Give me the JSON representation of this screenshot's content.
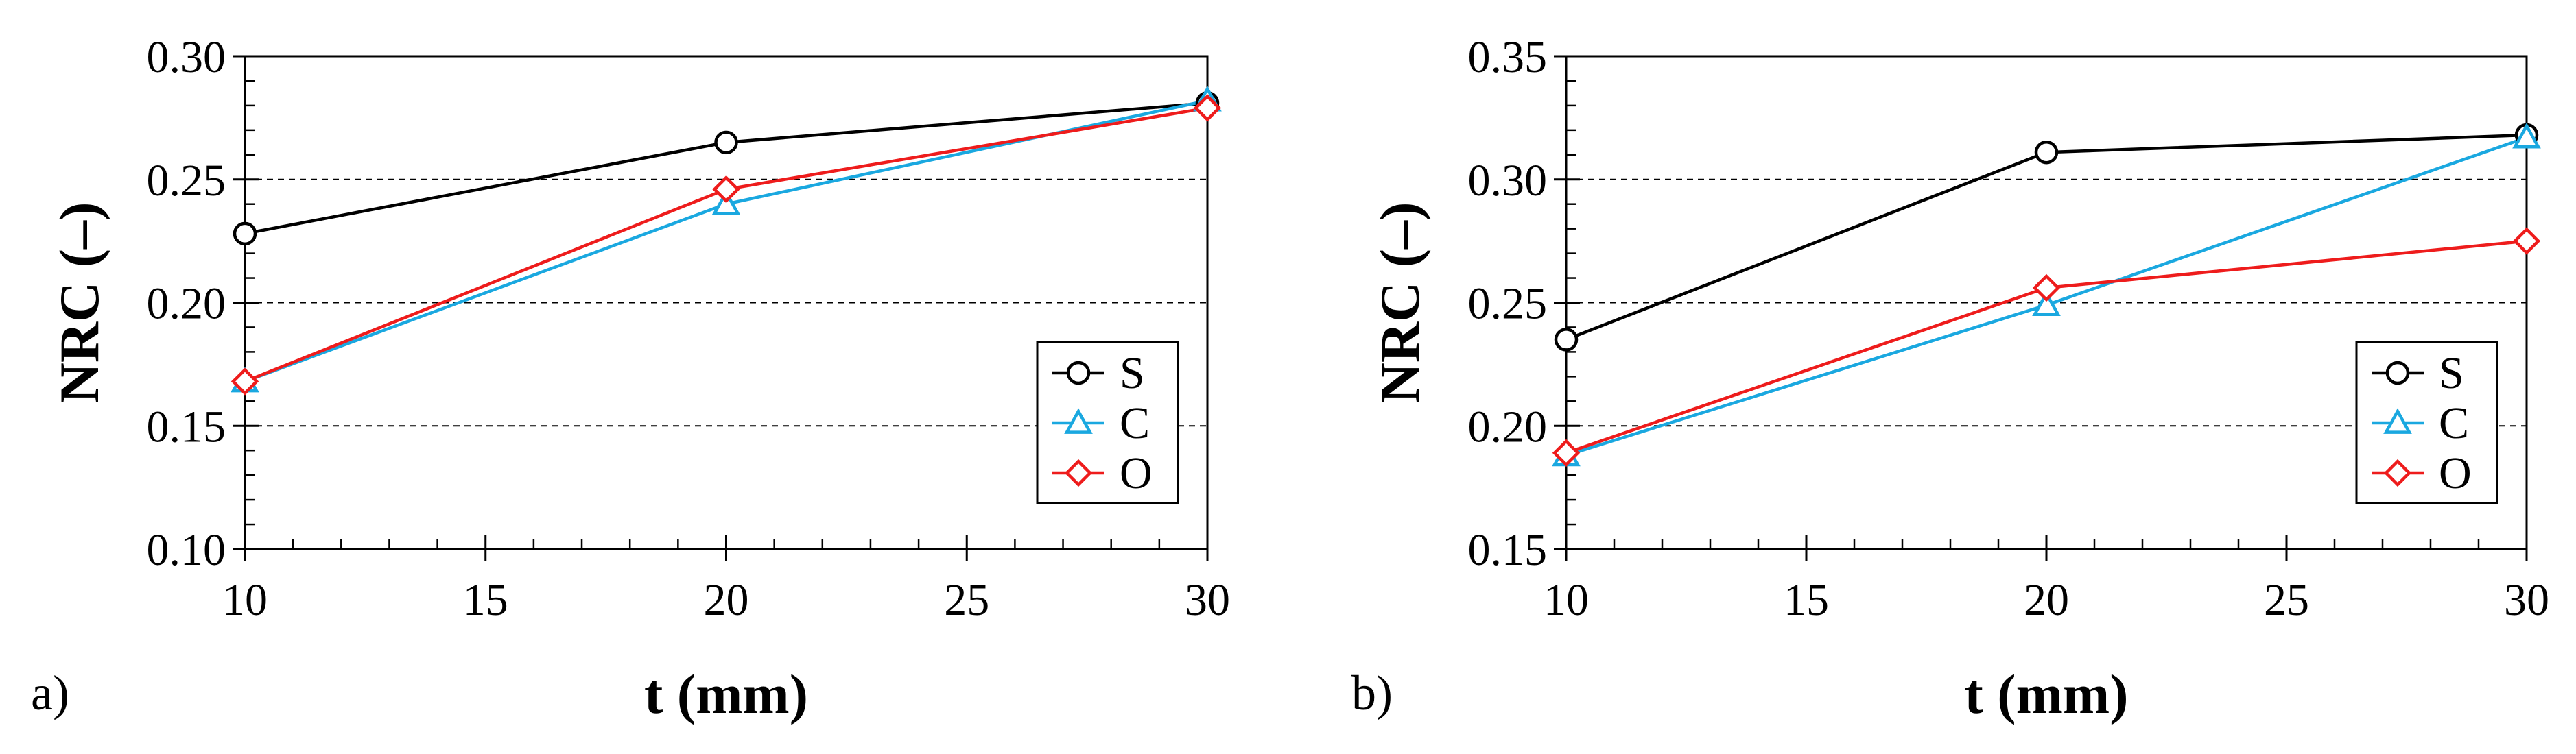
{
  "chart_data": [
    {
      "type": "line",
      "panel_label": "a)",
      "title": "",
      "xlabel": "t (mm)",
      "ylabel": "NRC (–)",
      "x": [
        10,
        20,
        30
      ],
      "xlim": [
        10,
        30
      ],
      "xticks": [
        10,
        15,
        20,
        25,
        30
      ],
      "xtick_labels": [
        "10",
        "15",
        "20",
        "25",
        "30"
      ],
      "ylim": [
        0.1,
        0.3
      ],
      "yticks": [
        0.1,
        0.15,
        0.2,
        0.25,
        0.3
      ],
      "ytick_labels": [
        "0.10",
        "0.15",
        "0.20",
        "0.25",
        "0.30"
      ],
      "grid": "dashed horizontal",
      "legend_position": "bottom-right",
      "series": [
        {
          "name": "S",
          "marker": "circle",
          "color": "#000000",
          "values": [
            0.228,
            0.265,
            0.281
          ]
        },
        {
          "name": "C",
          "marker": "triangle",
          "color": "#1aa8e0",
          "values": [
            0.168,
            0.24,
            0.282
          ]
        },
        {
          "name": "O",
          "marker": "diamond",
          "color": "#ee1c1c",
          "values": [
            0.168,
            0.246,
            0.279
          ]
        }
      ]
    },
    {
      "type": "line",
      "panel_label": "b)",
      "title": "",
      "xlabel": "t (mm)",
      "ylabel": "NRC (–)",
      "x": [
        10,
        20,
        30
      ],
      "xlim": [
        10,
        30
      ],
      "xticks": [
        10,
        15,
        20,
        25,
        30
      ],
      "xtick_labels": [
        "10",
        "15",
        "20",
        "25",
        "30"
      ],
      "ylim": [
        0.15,
        0.35
      ],
      "yticks": [
        0.15,
        0.2,
        0.25,
        0.3,
        0.35
      ],
      "ytick_labels": [
        "0.15",
        "0.20",
        "0.25",
        "0.30",
        "0.35"
      ],
      "grid": "dashed horizontal",
      "legend_position": "bottom-right",
      "series": [
        {
          "name": "S",
          "marker": "circle",
          "color": "#000000",
          "values": [
            0.235,
            0.311,
            0.318
          ]
        },
        {
          "name": "C",
          "marker": "triangle",
          "color": "#1aa8e0",
          "values": [
            0.188,
            0.249,
            0.317
          ]
        },
        {
          "name": "O",
          "marker": "diamond",
          "color": "#ee1c1c",
          "values": [
            0.189,
            0.256,
            0.275
          ]
        }
      ]
    }
  ]
}
